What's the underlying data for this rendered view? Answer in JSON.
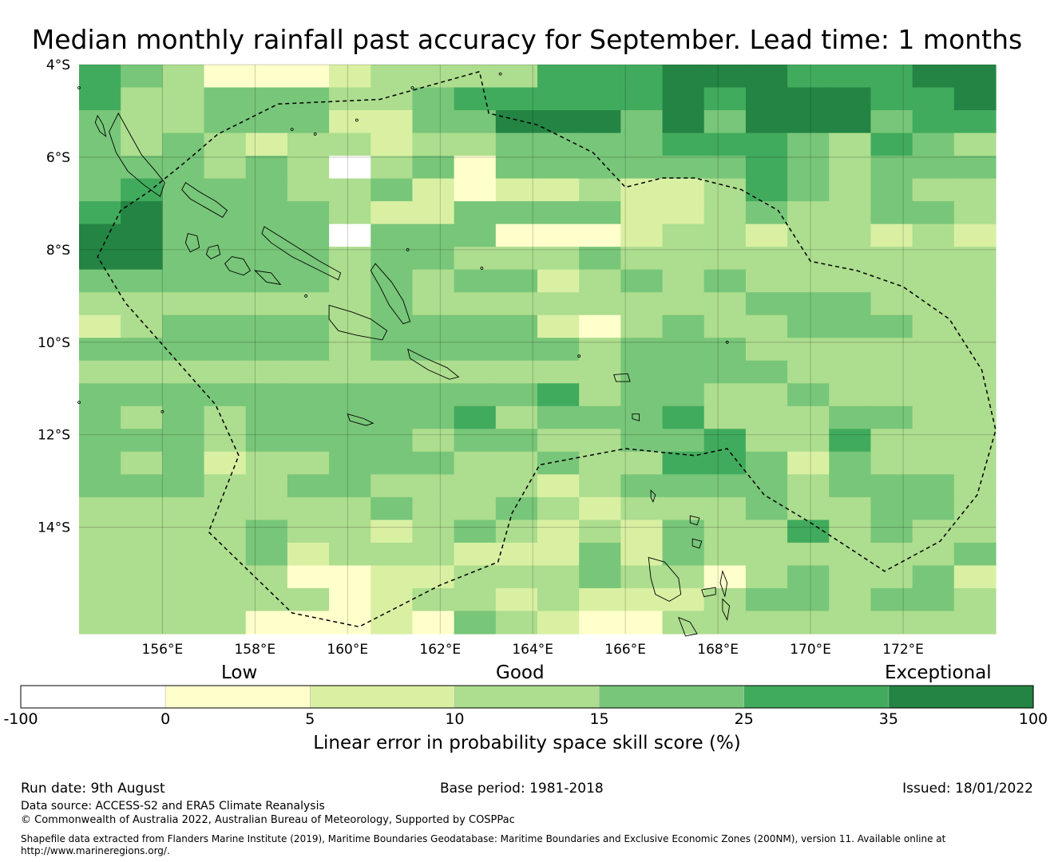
{
  "title": "Median monthly rainfall past accuracy for September. Lead time: 1 months",
  "map": {
    "lat_labels": [
      "4°S",
      "6°S",
      "8°S",
      "10°S",
      "12°S",
      "14°S"
    ],
    "lon_labels": [
      "156°E",
      "158°E",
      "160°E",
      "162°E",
      "164°E",
      "166°E",
      "168°E",
      "170°E",
      "172°E"
    ],
    "lat_range": [
      -16.3,
      -4.0
    ],
    "lon_range": [
      154.2,
      174.0
    ],
    "grid_resolution_deg": 0.83,
    "grid_rows": [
      "5431112333355566655566",
      "5334443345555565666556",
      "4334442244666464666455",
      "4343233233444455543543",
      "4443430341444444543444",
      "4544433421223223543433",
      "5644443224444223433443",
      "6644440444111233233232",
      "6644443443334333333333",
      "4444443434423434333333",
      "3333333433333333444333",
      "2344443444421343344433",
      "4444443444443444333333",
      "3333333333333444433333",
      "4444444444453443343333",
      "4343444445344453334433",
      "4443444434433445335333",
      "4342334443343355424333",
      "4443344333323444434443",
      "3333333433432333433443",
      "3333433234323243353433",
      "3333423332224243333334",
      "3333311223334331343342",
      "3333331233232223443443",
      "3333111214321133333333"
    ],
    "colors": [
      "#ffffff",
      "#ffffcc",
      "#d9f0a3",
      "#addd8e",
      "#78c679",
      "#41ab5d",
      "#238443"
    ]
  },
  "colorbar": {
    "categories": [
      "Low",
      "Good",
      "Exceptional"
    ],
    "ticks": [
      "-100",
      "0",
      "5",
      "10",
      "15",
      "25",
      "35",
      "100"
    ],
    "label": "Linear error in probability space skill score (%)"
  },
  "footer": {
    "run_date": "Run date: 9th August",
    "base_period": "Base period: 1981-2018",
    "issued": "Issued: 18/01/2022",
    "data_source": "Data source: ACCESS-S2 and ERA5 Climate Reanalysis",
    "copyright": "© Commonwealth of Australia 2022, Australian Bureau of Meteorology, Supported by COSPPac",
    "shapefile_line1": "Shapefile data extracted from Flanders Marine Institute (2019), Maritime Boundaries Geodatabase: Maritime Boundaries and Exclusive Economic Zones (200NM), version 11. Available online at",
    "shapefile_line2": "http://www.marineregions.org/."
  }
}
